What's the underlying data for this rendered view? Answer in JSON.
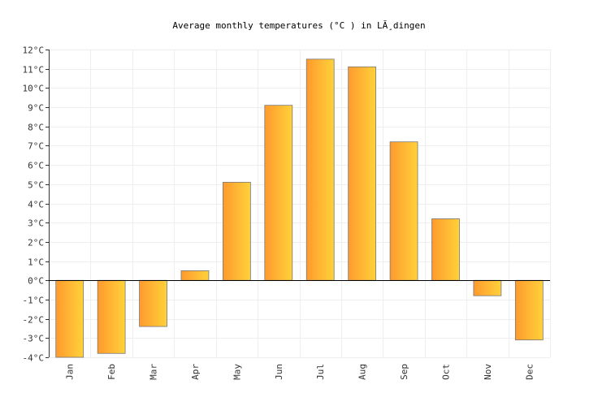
{
  "chart_data": {
    "type": "bar",
    "title": "Average monthly temperatures (°C ) in LĂ¸dingen",
    "categories": [
      "Jan",
      "Feb",
      "Mar",
      "Apr",
      "May",
      "Jun",
      "Jul",
      "Aug",
      "Sep",
      "Oct",
      "Nov",
      "Dec"
    ],
    "values": [
      -4.0,
      -3.8,
      -2.4,
      0.5,
      5.1,
      9.1,
      11.5,
      11.1,
      7.2,
      3.2,
      -0.8,
      -3.1
    ],
    "ylim": [
      -4,
      12
    ],
    "yticks": [
      -4,
      -3,
      -2,
      -1,
      0,
      1,
      2,
      3,
      4,
      5,
      6,
      7,
      8,
      9,
      10,
      11,
      12
    ],
    "ytick_suffix": "°C",
    "grid": true,
    "colors": {
      "bar_start": "#ff9a2e",
      "bar_end": "#ffd23a",
      "bar_stroke": "#777777",
      "grid": "#eeeeee"
    }
  }
}
